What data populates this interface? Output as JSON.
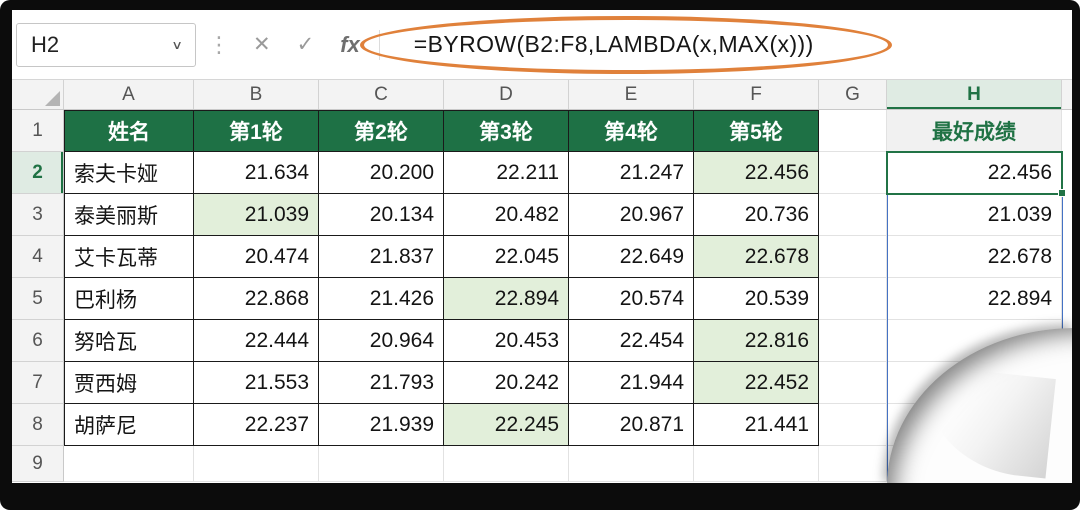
{
  "formula_bar": {
    "name_box_value": "H2",
    "formula": "=BYROW(B2:F8,LAMBDA(x,MAX(x)))",
    "icons": {
      "name_box_dropdown": "∨",
      "separator_dots": "⋮",
      "cancel": "✕",
      "enter": "✓",
      "fx": "fx"
    }
  },
  "grid": {
    "column_headers": [
      "A",
      "B",
      "C",
      "D",
      "E",
      "F",
      "G",
      "H"
    ],
    "selected_column": "H",
    "row_headers": [
      "1",
      "2",
      "3",
      "4",
      "5",
      "6",
      "7",
      "8",
      "9"
    ],
    "selected_row": "2",
    "table_header": [
      "姓名",
      "第1轮",
      "第2轮",
      "第3轮",
      "第4轮",
      "第5轮"
    ],
    "result_header": "最好成绩",
    "rows": [
      {
        "name": "索夫卡娅",
        "values": [
          "21.634",
          "20.200",
          "22.211",
          "21.247",
          "22.456"
        ],
        "max_col": 4,
        "best": "22.456"
      },
      {
        "name": "泰美丽斯",
        "values": [
          "21.039",
          "20.134",
          "20.482",
          "20.967",
          "20.736"
        ],
        "max_col": 0,
        "best": "21.039"
      },
      {
        "name": "艾卡瓦蒂",
        "values": [
          "20.474",
          "21.837",
          "22.045",
          "22.649",
          "22.678"
        ],
        "max_col": 4,
        "best": "22.678"
      },
      {
        "name": "巴利杨",
        "values": [
          "22.868",
          "21.426",
          "22.894",
          "20.574",
          "20.539"
        ],
        "max_col": 2,
        "best": "22.894"
      },
      {
        "name": "努哈瓦",
        "values": [
          "22.444",
          "20.964",
          "20.453",
          "22.454",
          "22.816"
        ],
        "max_col": 4,
        "best": ""
      },
      {
        "name": "贾西姆",
        "values": [
          "21.553",
          "21.793",
          "20.242",
          "21.944",
          "22.452"
        ],
        "max_col": 4,
        "best": ""
      },
      {
        "name": "胡萨尼",
        "values": [
          "22.237",
          "21.939",
          "22.245",
          "20.871",
          "21.441"
        ],
        "max_col": 2,
        "best": ""
      }
    ]
  },
  "colors": {
    "table_header_green": "#1E7145",
    "highlight_green": "#E2EFDA",
    "annotation_orange": "#E0813B",
    "selection_green": "#217346",
    "spill_border_blue": "#4472C4"
  }
}
